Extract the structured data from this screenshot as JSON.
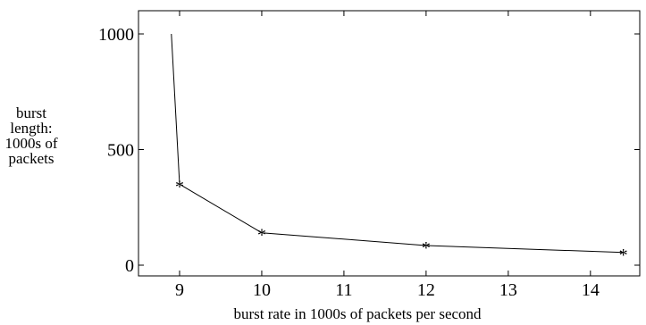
{
  "chart_data": {
    "type": "line",
    "title": "",
    "xlabel": "burst rate in 1000s of packets per second",
    "ylabel_lines": [
      "burst",
      "length:",
      "1000s of",
      "packets"
    ],
    "xlim": [
      8.5,
      14.6
    ],
    "ylim": [
      0,
      1000
    ],
    "x_ticks": [
      9,
      10,
      11,
      12,
      13,
      14
    ],
    "x_tick_labels": [
      "9",
      "10",
      "11",
      "12",
      "13",
      "14"
    ],
    "y_ticks": [
      0,
      500,
      1000
    ],
    "y_tick_labels": [
      "0",
      "500",
      "1000"
    ],
    "grid": false,
    "marker": "*",
    "series": [
      {
        "x": [
          8.9,
          9.0,
          10.0,
          12.0,
          14.4
        ],
        "y": [
          1000,
          350,
          140,
          85,
          55
        ],
        "marked": [
          false,
          true,
          true,
          true,
          true
        ]
      }
    ]
  }
}
